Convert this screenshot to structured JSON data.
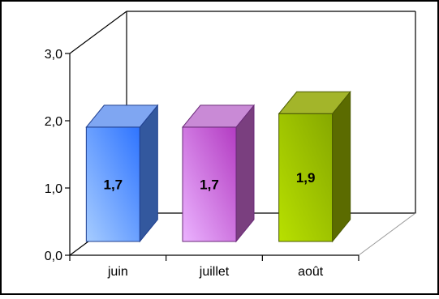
{
  "chart_data": {
    "type": "bar",
    "title": "",
    "xlabel": "",
    "ylabel": "",
    "categories": [
      "juin",
      "juillet",
      "août"
    ],
    "values": [
      1.7,
      1.7,
      1.9
    ],
    "value_labels": [
      "1,7",
      "1,7",
      "1,9"
    ],
    "ylim": [
      0,
      3
    ],
    "yticks": [
      0,
      1,
      2,
      3
    ],
    "ytick_labels": [
      "0,0",
      "1,0",
      "2,0",
      "3,0"
    ],
    "grid": false,
    "legend": "none",
    "three_d": true,
    "colors": [
      {
        "front_light": "#a6ccff",
        "front_dark": "#2f74ff",
        "side": "#33589e",
        "top": "#7fa6f2",
        "edge": "#1f3f8f"
      },
      {
        "front_light": "#ebb3ff",
        "front_dark": "#b33cc2",
        "side": "#7a3f7f",
        "top": "#c98ad6",
        "edge": "#6a2a78"
      },
      {
        "front_light": "#b8e000",
        "front_dark": "#86a800",
        "side": "#5b6b00",
        "top": "#a3b52a",
        "edge": "#4b5a00"
      }
    ]
  }
}
